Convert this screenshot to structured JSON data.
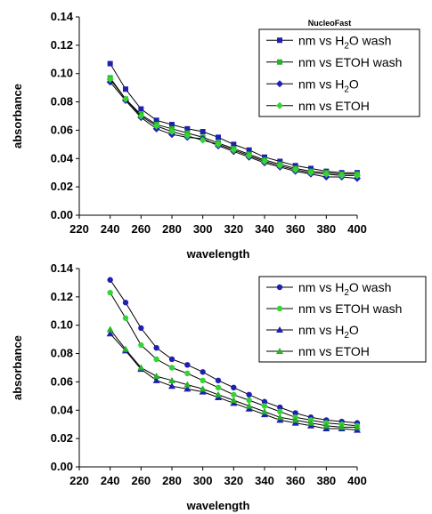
{
  "chart_data": [
    {
      "type": "line",
      "title": "",
      "annotation": "NucleoFast",
      "xlabel": "wavelength",
      "ylabel": "absorbance",
      "xlim": [
        220,
        400
      ],
      "ylim": [
        0,
        0.14
      ],
      "x_ticks": [
        "220",
        "240",
        "260",
        "280",
        "300",
        "320",
        "340",
        "360",
        "380",
        "400"
      ],
      "y_ticks": [
        "0.00",
        "0.02",
        "0.04",
        "0.06",
        "0.08",
        "0.10",
        "0.12",
        "0.14"
      ],
      "grid": false,
      "legend_position": "top-right",
      "x": [
        240,
        250,
        260,
        270,
        280,
        290,
        300,
        310,
        320,
        330,
        340,
        350,
        360,
        370,
        380,
        390,
        400
      ],
      "series": [
        {
          "name": "nm vs H2O wash",
          "color": "#1f1fb0",
          "marker": "square",
          "values": [
            0.107,
            0.089,
            0.075,
            0.067,
            0.064,
            0.061,
            0.059,
            0.055,
            0.05,
            0.046,
            0.041,
            0.038,
            0.035,
            0.033,
            0.031,
            0.03,
            0.03
          ]
        },
        {
          "name": "nm vs ETOH wash",
          "color": "#27b327",
          "marker": "square",
          "values": [
            0.097,
            0.082,
            0.071,
            0.064,
            0.061,
            0.058,
            0.055,
            0.051,
            0.047,
            0.043,
            0.039,
            0.036,
            0.033,
            0.031,
            0.03,
            0.029,
            0.029
          ]
        },
        {
          "name": "nm vs H2O",
          "color": "#1f1fb0",
          "marker": "diamond",
          "values": [
            0.094,
            0.081,
            0.069,
            0.061,
            0.057,
            0.055,
            0.054,
            0.049,
            0.045,
            0.041,
            0.037,
            0.034,
            0.031,
            0.029,
            0.027,
            0.027,
            0.026
          ]
        },
        {
          "name": "nm vs ETOH",
          "color": "#36d336",
          "marker": "diamond",
          "values": [
            0.096,
            0.082,
            0.07,
            0.063,
            0.059,
            0.056,
            0.053,
            0.05,
            0.046,
            0.042,
            0.038,
            0.035,
            0.032,
            0.03,
            0.029,
            0.028,
            0.028
          ]
        }
      ]
    },
    {
      "type": "line",
      "title": "",
      "xlabel": "wavelength",
      "ylabel": "absorbance",
      "xlim": [
        220,
        400
      ],
      "ylim": [
        0,
        0.14
      ],
      "x_ticks": [
        "220",
        "240",
        "260",
        "280",
        "300",
        "320",
        "340",
        "360",
        "380",
        "400"
      ],
      "y_ticks": [
        "0.00",
        "0.02",
        "0.04",
        "0.06",
        "0.08",
        "0.10",
        "0.12",
        "0.14"
      ],
      "grid": false,
      "legend_position": "top-right",
      "x": [
        240,
        250,
        260,
        270,
        280,
        290,
        300,
        310,
        320,
        330,
        340,
        350,
        360,
        370,
        380,
        390,
        400
      ],
      "series": [
        {
          "name": "nm vs H2O wash",
          "color": "#1f1fb0",
          "marker": "circle",
          "values": [
            0.132,
            0.116,
            0.098,
            0.084,
            0.076,
            0.072,
            0.067,
            0.061,
            0.056,
            0.051,
            0.046,
            0.042,
            0.038,
            0.035,
            0.033,
            0.032,
            0.031
          ]
        },
        {
          "name": "nm vs ETOH wash",
          "color": "#36d336",
          "marker": "circle",
          "values": [
            0.123,
            0.105,
            0.086,
            0.076,
            0.07,
            0.066,
            0.061,
            0.056,
            0.051,
            0.047,
            0.043,
            0.039,
            0.035,
            0.033,
            0.031,
            0.03,
            0.029
          ]
        },
        {
          "name": "nm vs H2O",
          "color": "#1f1fb0",
          "marker": "triangle",
          "values": [
            0.094,
            0.082,
            0.069,
            0.061,
            0.057,
            0.055,
            0.053,
            0.049,
            0.045,
            0.041,
            0.037,
            0.033,
            0.031,
            0.029,
            0.027,
            0.027,
            0.026
          ]
        },
        {
          "name": "nm vs ETOH",
          "color": "#27b327",
          "marker": "triangle",
          "values": [
            0.097,
            0.083,
            0.07,
            0.064,
            0.061,
            0.058,
            0.055,
            0.051,
            0.047,
            0.043,
            0.039,
            0.035,
            0.033,
            0.031,
            0.029,
            0.028,
            0.028
          ]
        }
      ]
    }
  ]
}
